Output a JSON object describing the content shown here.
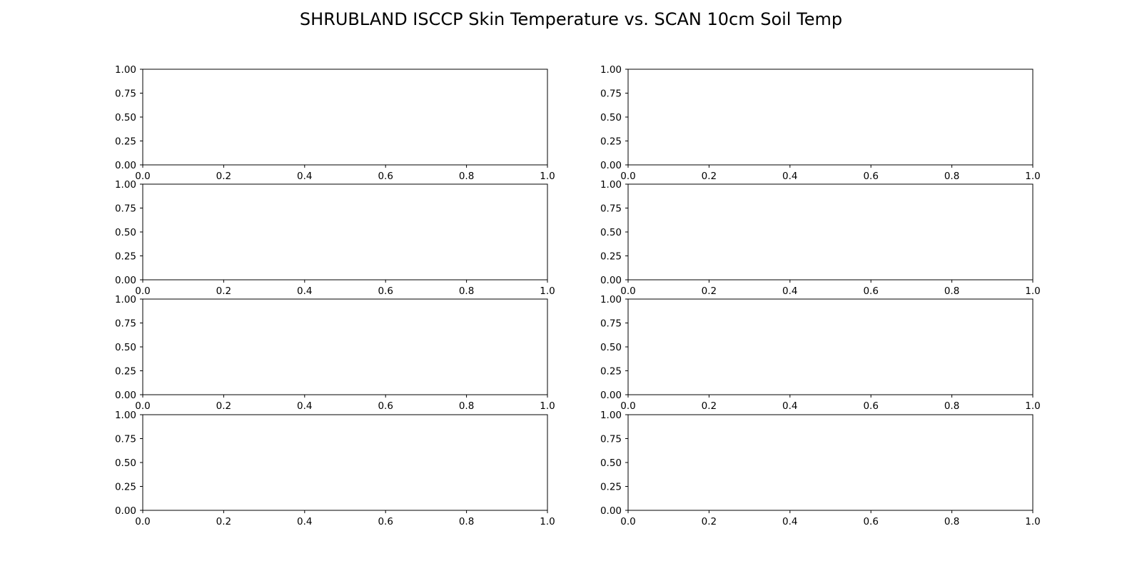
{
  "chart_data": {
    "type": "scatter",
    "title": "SHRUBLAND ISCCP Skin Temperature vs. SCAN 10cm Soil Temp",
    "layout": {
      "rows": 4,
      "cols": 2
    },
    "panels": [
      {
        "id": "r1c1",
        "xlim": [
          0,
          1
        ],
        "ylim": [
          0,
          1
        ],
        "xticks": [
          "0.0",
          "0.2",
          "0.4",
          "0.6",
          "0.8",
          "1.0"
        ],
        "yticks": [
          "0.00",
          "0.25",
          "0.50",
          "0.75",
          "1.00"
        ],
        "series": []
      },
      {
        "id": "r1c2",
        "xlim": [
          0,
          1
        ],
        "ylim": [
          0,
          1
        ],
        "xticks": [
          "0.0",
          "0.2",
          "0.4",
          "0.6",
          "0.8",
          "1.0"
        ],
        "yticks": [
          "0.00",
          "0.25",
          "0.50",
          "0.75",
          "1.00"
        ],
        "series": []
      },
      {
        "id": "r2c1",
        "xlim": [
          0,
          1
        ],
        "ylim": [
          0,
          1
        ],
        "xticks": [
          "0.0",
          "0.2",
          "0.4",
          "0.6",
          "0.8",
          "1.0"
        ],
        "yticks": [
          "0.00",
          "0.25",
          "0.50",
          "0.75",
          "1.00"
        ],
        "series": []
      },
      {
        "id": "r2c2",
        "xlim": [
          0,
          1
        ],
        "ylim": [
          0,
          1
        ],
        "xticks": [
          "0.0",
          "0.2",
          "0.4",
          "0.6",
          "0.8",
          "1.0"
        ],
        "yticks": [
          "0.00",
          "0.25",
          "0.50",
          "0.75",
          "1.00"
        ],
        "series": []
      },
      {
        "id": "r3c1",
        "xlim": [
          0,
          1
        ],
        "ylim": [
          0,
          1
        ],
        "xticks": [
          "0.0",
          "0.2",
          "0.4",
          "0.6",
          "0.8",
          "1.0"
        ],
        "yticks": [
          "0.00",
          "0.25",
          "0.50",
          "0.75",
          "1.00"
        ],
        "series": []
      },
      {
        "id": "r3c2",
        "xlim": [
          0,
          1
        ],
        "ylim": [
          0,
          1
        ],
        "xticks": [
          "0.0",
          "0.2",
          "0.4",
          "0.6",
          "0.8",
          "1.0"
        ],
        "yticks": [
          "0.00",
          "0.25",
          "0.50",
          "0.75",
          "1.00"
        ],
        "series": []
      },
      {
        "id": "r4c1",
        "xlim": [
          0,
          1
        ],
        "ylim": [
          0,
          1
        ],
        "xticks": [
          "0.0",
          "0.2",
          "0.4",
          "0.6",
          "0.8",
          "1.0"
        ],
        "yticks": [
          "0.00",
          "0.25",
          "0.50",
          "0.75",
          "1.00"
        ],
        "series": []
      },
      {
        "id": "r4c2",
        "xlim": [
          0,
          1
        ],
        "ylim": [
          0,
          1
        ],
        "xticks": [
          "0.0",
          "0.2",
          "0.4",
          "0.6",
          "0.8",
          "1.0"
        ],
        "yticks": [
          "0.00",
          "0.25",
          "0.50",
          "0.75",
          "1.00"
        ],
        "series": []
      }
    ],
    "grid": false,
    "legend": "none"
  }
}
